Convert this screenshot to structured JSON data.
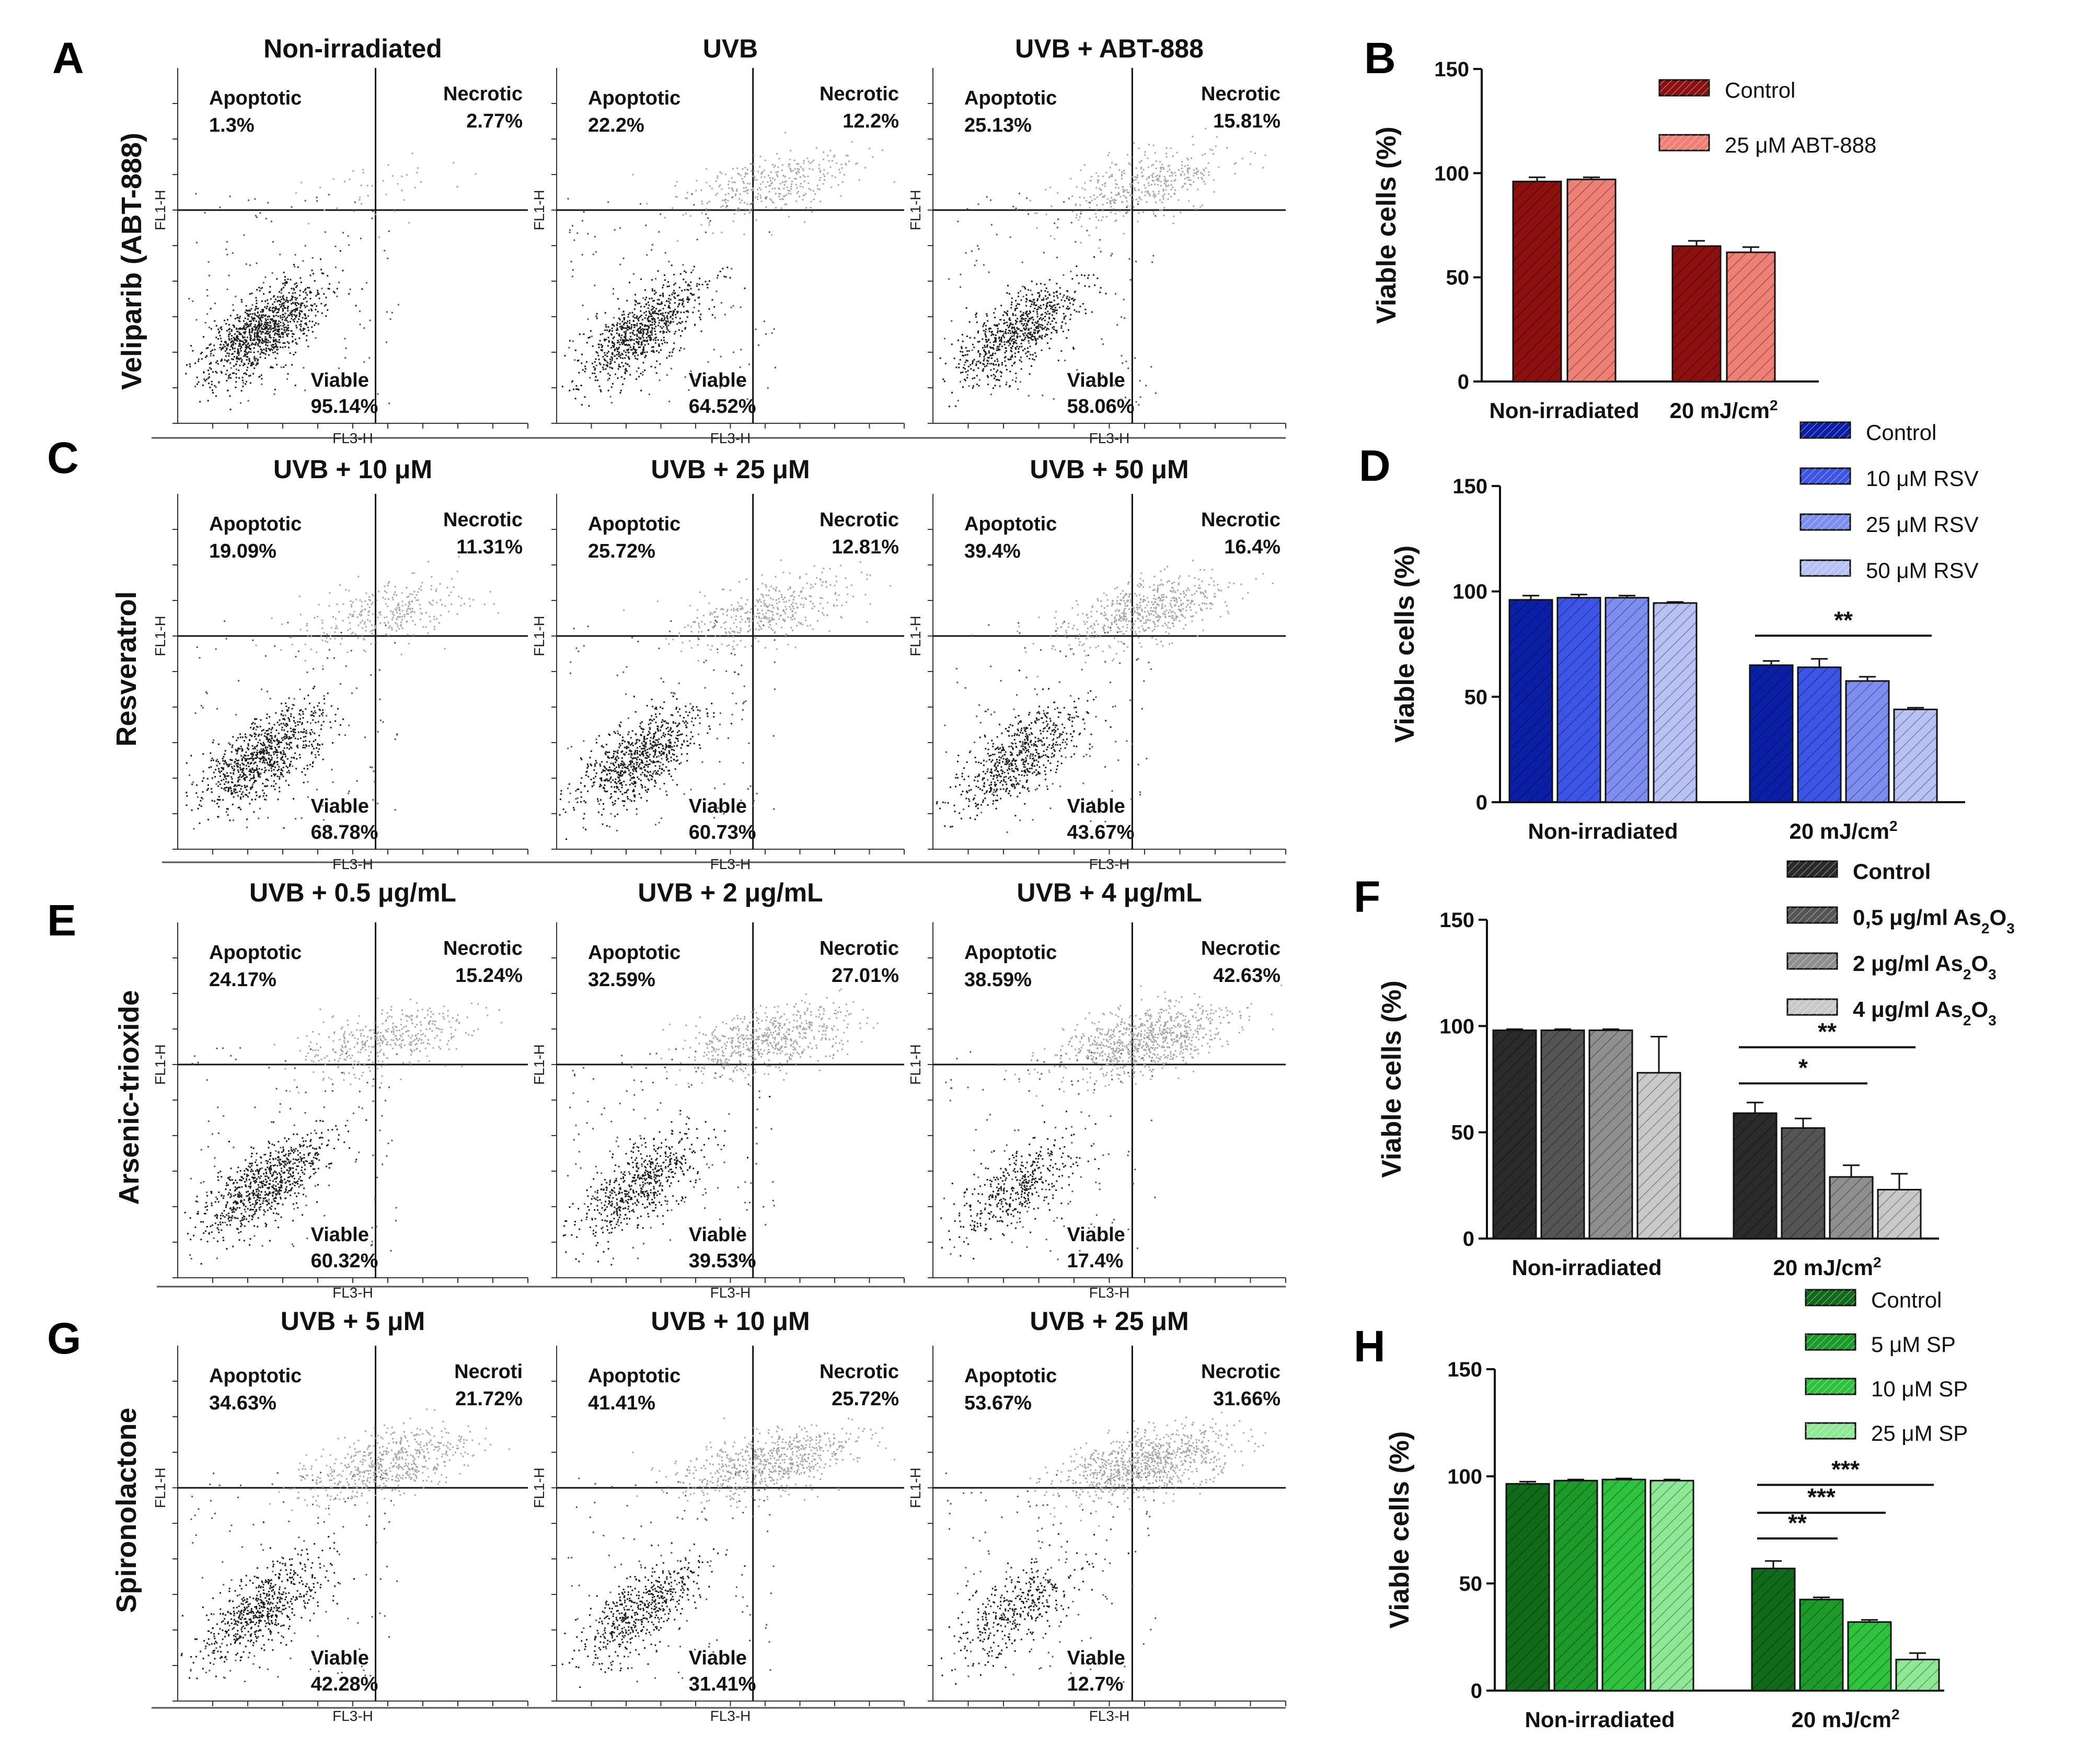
{
  "panel_letters": [
    "A",
    "B",
    "C",
    "D",
    "E",
    "F",
    "G",
    "H"
  ],
  "row_labels": [
    "Veliparib (ABT-888)",
    "Resveratrol",
    "Arsenic-trioxide",
    "Spironolactone"
  ],
  "flow_axis": {
    "x_label": "FL3-H",
    "y_label": "FL1-H"
  },
  "quadrant_names": {
    "apoptotic": "Apoptotic",
    "necrotic": "Necrotic",
    "viable": "Viable"
  },
  "flow_panels": [
    {
      "title": "Non-irradiated",
      "apoptotic": "1.3%",
      "necrotic": "2.77%",
      "viable": "95.14%",
      "necrotic_label": "Necrotic"
    },
    {
      "title": "UVB",
      "apoptotic": "22.2%",
      "necrotic": "12.2%",
      "viable": "64.52%",
      "necrotic_label": "Necrotic"
    },
    {
      "title": "UVB + ABT-888",
      "apoptotic": "25.13%",
      "necrotic": "15.81%",
      "viable": "58.06%",
      "necrotic_label": "Necrotic"
    },
    {
      "title": "UVB + 10 μM",
      "apoptotic": "19.09%",
      "necrotic": "11.31%",
      "viable": "68.78%",
      "necrotic_label": "Necrotic"
    },
    {
      "title": "UVB + 25 μM",
      "apoptotic": "25.72%",
      "necrotic": "12.81%",
      "viable": "60.73%",
      "necrotic_label": "Necrotic"
    },
    {
      "title": "UVB + 50 μM",
      "apoptotic": "39.4%",
      "necrotic": "16.4%",
      "viable": "43.67%",
      "necrotic_label": "Necrotic"
    },
    {
      "title": "UVB + 0.5 μg/mL",
      "apoptotic": "24.17%",
      "necrotic": "15.24%",
      "viable": "60.32%",
      "necrotic_label": "Necrotic"
    },
    {
      "title": "UVB + 2 μg/mL",
      "apoptotic": "32.59%",
      "necrotic": "27.01%",
      "viable": "39.53%",
      "necrotic_label": "Necrotic"
    },
    {
      "title": "UVB + 4 μg/mL",
      "apoptotic": "38.59%",
      "necrotic": "42.63%",
      "viable": "17.4%",
      "necrotic_label": "Necrotic"
    },
    {
      "title": "UVB + 5 μM",
      "apoptotic": "34.63%",
      "necrotic": "21.72%",
      "viable": "42.28%",
      "necrotic_label": "Necroti"
    },
    {
      "title": "UVB + 10 μM",
      "apoptotic": "41.41%",
      "necrotic": "25.72%",
      "viable": "31.41%",
      "necrotic_label": "Necrotic"
    },
    {
      "title": "UVB + 25 μM",
      "apoptotic": "53.67%",
      "necrotic": "31.66%",
      "viable": "12.7%",
      "necrotic_label": "Necrotic"
    }
  ],
  "chart_data": [
    {
      "type": "bar",
      "panel": "B",
      "ylabel": "Viable cells (%)",
      "ylim": [
        0,
        150
      ],
      "yticks": [
        0,
        50,
        100,
        150
      ],
      "categories": [
        "Non-irradiated",
        "20 mJ/cm2"
      ],
      "series": [
        {
          "name": "Control",
          "color": "#8c1010",
          "values": [
            96,
            65
          ],
          "errors": [
            2,
            2.5
          ]
        },
        {
          "name": "25 μM ABT-888",
          "color": "#ee8078",
          "values": [
            97,
            62
          ],
          "errors": [
            1,
            2.5
          ]
        }
      ],
      "significance": []
    },
    {
      "type": "bar",
      "panel": "D",
      "ylabel": "Viable cells (%)",
      "ylim": [
        0,
        150
      ],
      "yticks": [
        0,
        50,
        100,
        150
      ],
      "categories": [
        "Non-irradiated",
        "20 mJ/cm2"
      ],
      "series": [
        {
          "name": "Control",
          "color": "#0a1fa6",
          "values": [
            96,
            65
          ],
          "errors": [
            2,
            2
          ]
        },
        {
          "name": "10 μM RSV",
          "color": "#3d55e6",
          "values": [
            97,
            64
          ],
          "errors": [
            1.5,
            4
          ]
        },
        {
          "name": "25 μM RSV",
          "color": "#7d8ef0",
          "values": [
            97,
            57.5
          ],
          "errors": [
            1,
            2
          ]
        },
        {
          "name": "50 μM RSV",
          "color": "#b9c2f5",
          "values": [
            94.5,
            44
          ],
          "errors": [
            0.5,
            0.8
          ]
        }
      ],
      "significance": [
        {
          "label": "**",
          "from": 0,
          "to": 3,
          "y": 79
        }
      ]
    },
    {
      "type": "bar",
      "panel": "F",
      "ylabel": "Viable cells (%)",
      "ylim": [
        0,
        150
      ],
      "yticks": [
        0,
        50,
        100,
        150
      ],
      "categories": [
        "Non-irradiated",
        "20 mJ/cm2"
      ],
      "series": [
        {
          "name": "Control",
          "color": "#2a2a2a",
          "values": [
            98,
            59
          ],
          "errors": [
            0.5,
            5
          ]
        },
        {
          "name": "0,5 μg/ml As2O3",
          "color": "#555555",
          "values": [
            98,
            52
          ],
          "errors": [
            0.5,
            4.5
          ]
        },
        {
          "name": "2 μg/ml As2O3",
          "color": "#8f8f8f",
          "values": [
            98,
            29
          ],
          "errors": [
            0.5,
            5.5
          ]
        },
        {
          "name": "4 μg/ml As2O3",
          "color": "#c9c9c9",
          "values": [
            78,
            23
          ],
          "errors": [
            17,
            7.5
          ]
        }
      ],
      "significance": [
        {
          "label": "*",
          "from": 0,
          "to": 2,
          "y": 73
        },
        {
          "label": "**",
          "from": 0,
          "to": 3,
          "y": 90
        }
      ]
    },
    {
      "type": "bar",
      "panel": "H",
      "ylabel": "Viable cells (%)",
      "ylim": [
        0,
        150
      ],
      "yticks": [
        0,
        50,
        100,
        150
      ],
      "categories": [
        "Non-irradiated",
        "20 mJ/cm2"
      ],
      "series": [
        {
          "name": "Control",
          "color": "#116a1a",
          "values": [
            96.5,
            57
          ],
          "errors": [
            1,
            3.5
          ]
        },
        {
          "name": "5 μM SP",
          "color": "#1c9a2a",
          "values": [
            98,
            42.5
          ],
          "errors": [
            0.5,
            1
          ]
        },
        {
          "name": "10 μM SP",
          "color": "#2fc23e",
          "values": [
            98.5,
            32
          ],
          "errors": [
            0.5,
            1
          ]
        },
        {
          "name": "25 μM SP",
          "color": "#8fe896",
          "values": [
            98,
            14.5
          ],
          "errors": [
            0.5,
            3
          ]
        }
      ],
      "significance": [
        {
          "label": "**",
          "from": 0,
          "to": 1,
          "y": 71
        },
        {
          "label": "***",
          "from": 0,
          "to": 2,
          "y": 83
        },
        {
          "label": "***",
          "from": 0,
          "to": 3,
          "y": 96
        }
      ]
    }
  ]
}
